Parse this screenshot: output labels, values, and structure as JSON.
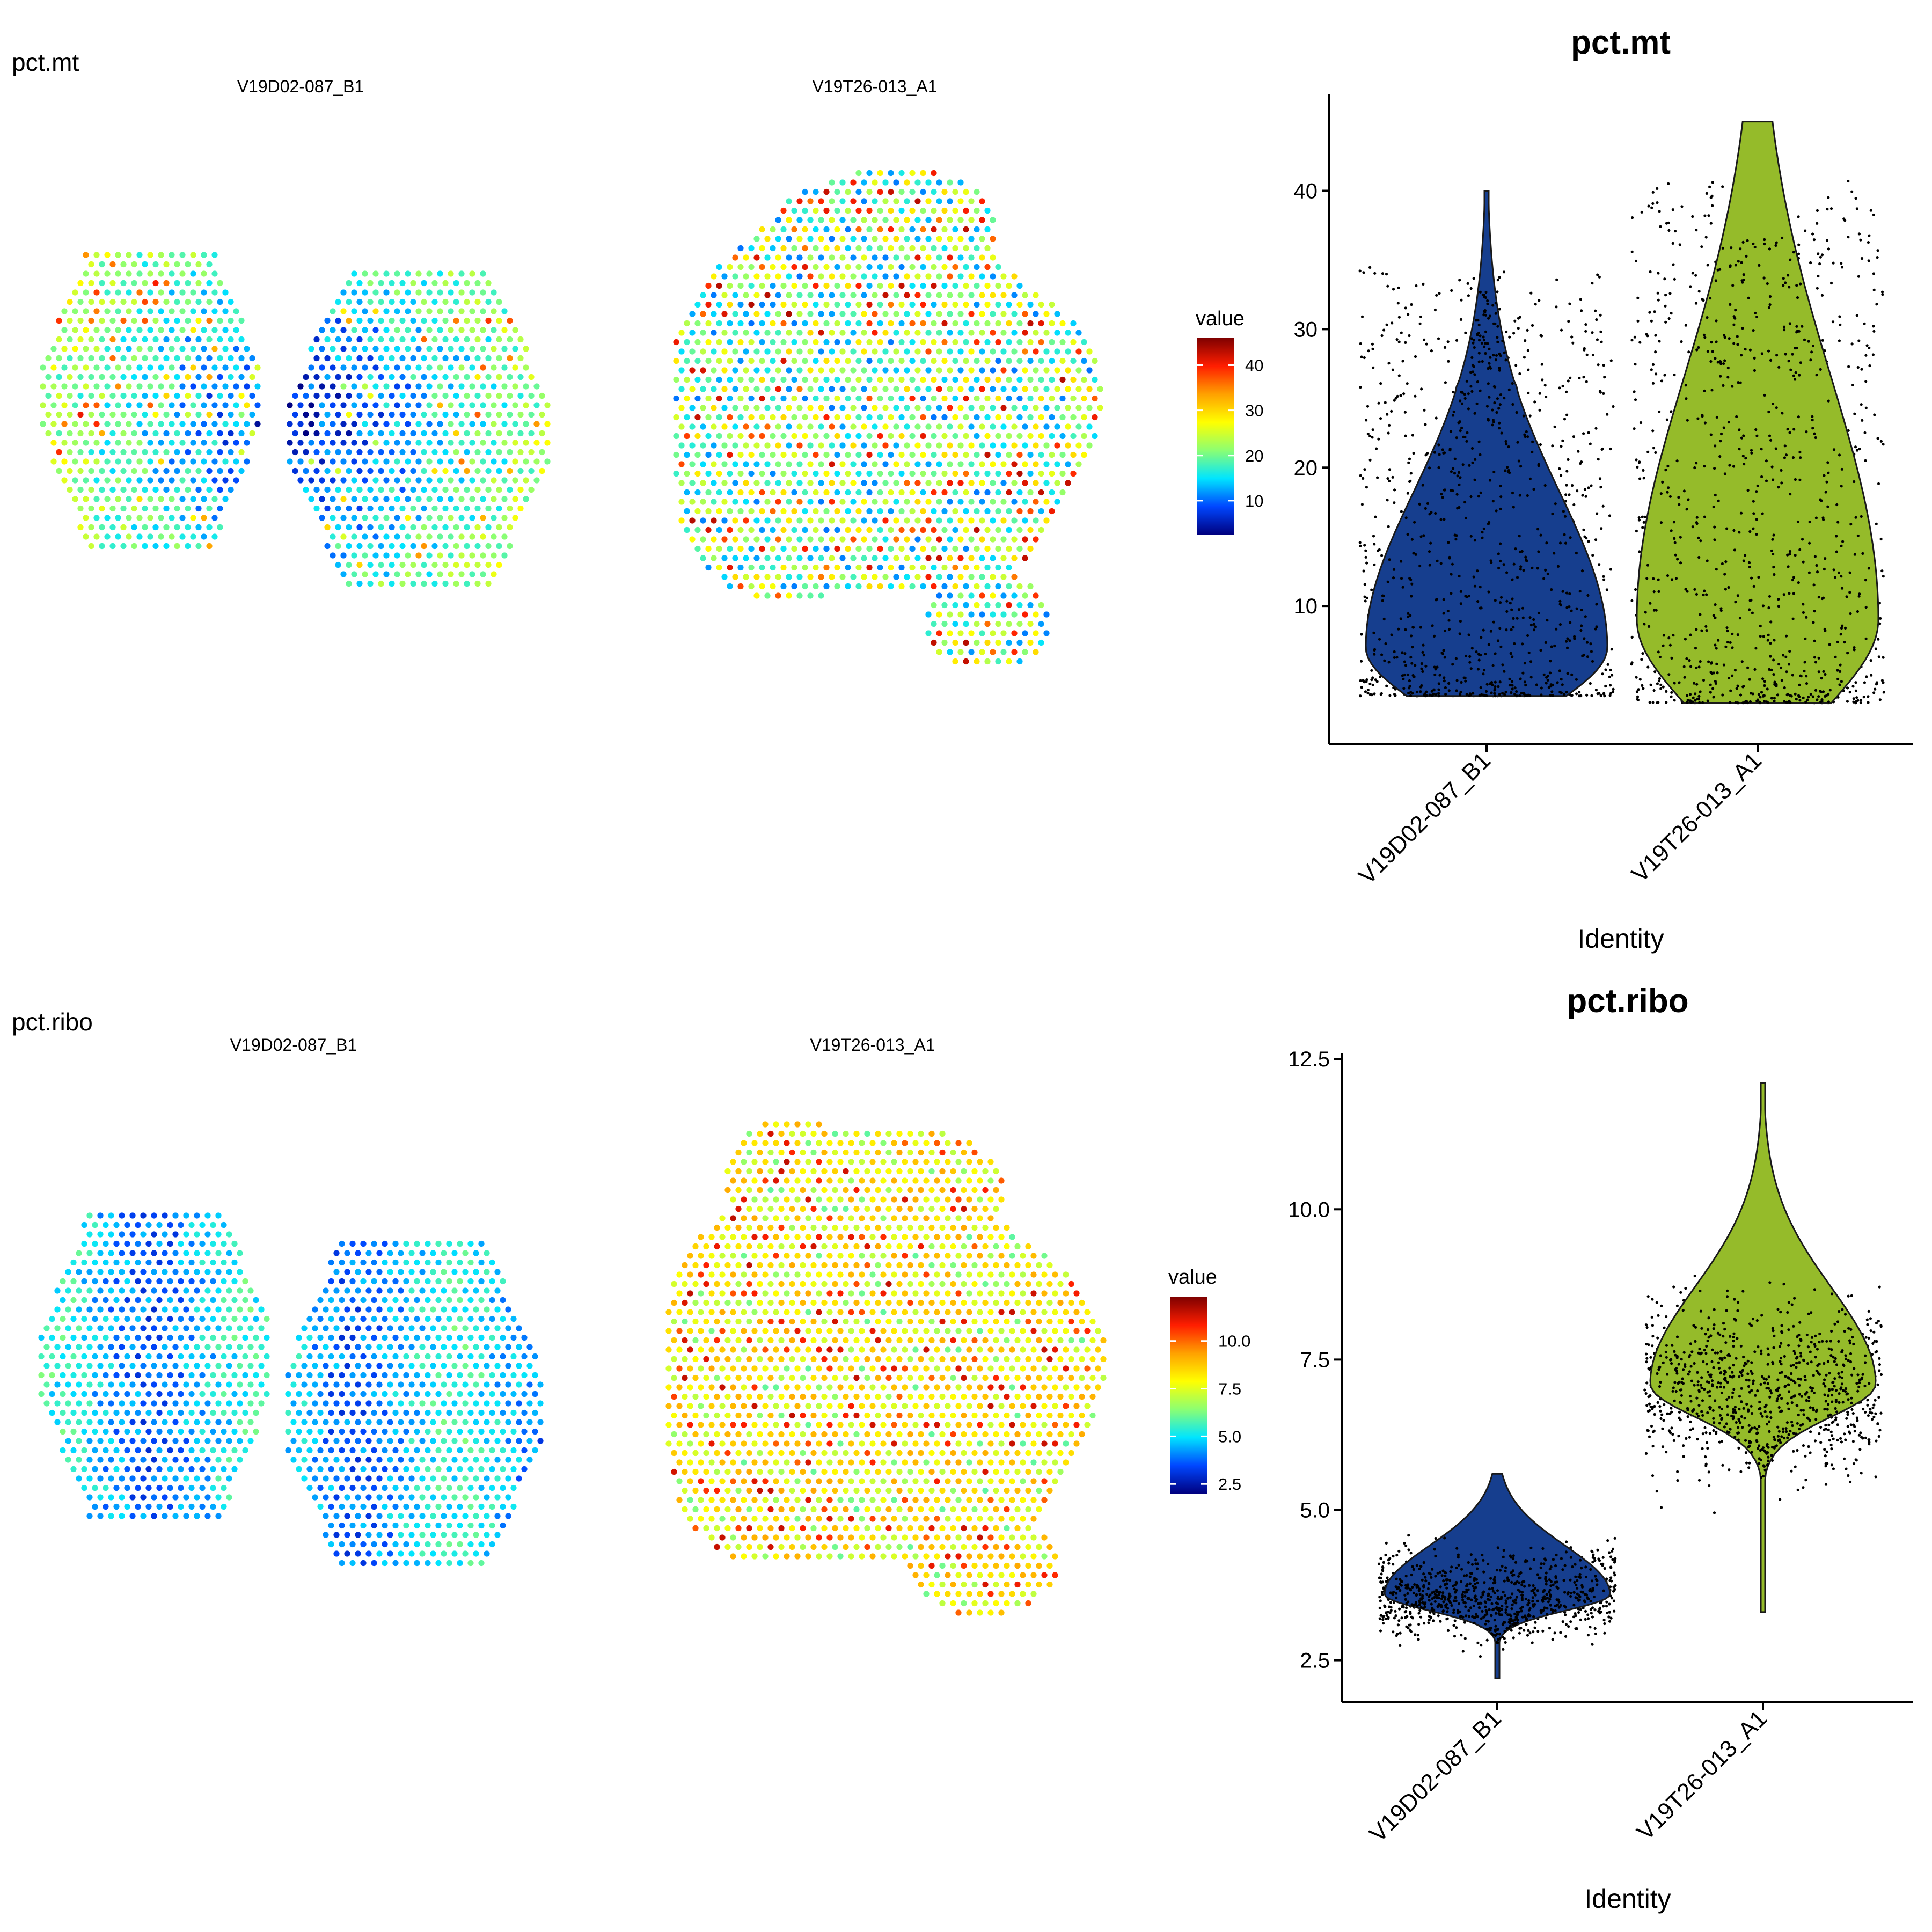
{
  "colors": {
    "jet": [
      "#00007f",
      "#0047ff",
      "#00e5ff",
      "#8cff72",
      "#ffff00",
      "#ffa100",
      "#ff1e00",
      "#7f0000"
    ],
    "group1": "#163e8e",
    "group2": "#95bb2a",
    "jitter_point": "#000000",
    "axis": "#000000"
  },
  "rows": [
    {
      "row_label": "pct.mt",
      "spatial": {
        "panels": [
          {
            "title": "V19D02-087_B1",
            "shape": "two-lobes",
            "bias": "low"
          },
          {
            "title": "V19T26-013_A1",
            "shape": "blob",
            "bias": "mid"
          }
        ],
        "legend": {
          "title": "value",
          "min": 2.5,
          "max": 46,
          "ticks": [
            10,
            20,
            30,
            40
          ],
          "tick_labels": [
            "10",
            "20",
            "30",
            "40"
          ]
        }
      },
      "violin": {
        "title": "pct.mt",
        "x_axis_label": "Identity",
        "y_ticks": [
          10,
          20,
          30,
          40
        ],
        "y_tick_labels": [
          "10",
          "20",
          "30",
          "40"
        ],
        "ylim": [
          0,
          47
        ],
        "groups": [
          {
            "name": "V19D02-087_B1",
            "min": 3.5,
            "max": 40,
            "peak": 7,
            "spread": 7
          },
          {
            "name": "V19T26-013_A1",
            "min": 3,
            "max": 45,
            "peak": 9,
            "spread": 11
          }
        ]
      }
    },
    {
      "row_label": "pct.ribo",
      "spatial": {
        "panels": [
          {
            "title": "V19D02-087_B1",
            "shape": "two-lobes",
            "bias": "vlow"
          },
          {
            "title": "V19T26-013_A1",
            "shape": "blob",
            "bias": "high"
          }
        ],
        "legend": {
          "title": "value",
          "min": 2.0,
          "max": 12.3,
          "ticks": [
            2.5,
            5.0,
            7.5,
            10.0
          ],
          "tick_labels": [
            "2.5",
            "5.0",
            "7.5",
            "10.0"
          ]
        }
      },
      "violin": {
        "title": "pct.ribo",
        "x_axis_label": "Identity",
        "y_ticks": [
          2.5,
          5.0,
          7.5,
          10.0,
          12.5
        ],
        "y_tick_labels": [
          "2.5",
          "5.0",
          "7.5",
          "10.0",
          "12.5"
        ],
        "ylim": [
          1.8,
          12.6
        ],
        "groups": [
          {
            "name": "V19D02-087_B1",
            "min": 2.2,
            "max": 5.6,
            "peak": 3.6,
            "spread": 0.5
          },
          {
            "name": "V19T26-013_A1",
            "min": 3.3,
            "max": 12.1,
            "peak": 7.1,
            "spread": 1.0
          }
        ]
      }
    }
  ],
  "chart_data": [
    {
      "type": "violin",
      "title": "pct.mt",
      "xlabel": "Identity",
      "ylabel": "",
      "categories": [
        "V19D02-087_B1",
        "V19T26-013_A1"
      ],
      "series": [
        {
          "name": "V19D02-087_B1",
          "min": 3.5,
          "max": 40,
          "mode": 7
        },
        {
          "name": "V19T26-013_A1",
          "min": 3,
          "max": 45,
          "mode": 9
        }
      ],
      "y_ticks": [
        10,
        20,
        30,
        40
      ],
      "grid": false
    },
    {
      "type": "violin",
      "title": "pct.ribo",
      "xlabel": "Identity",
      "ylabel": "",
      "categories": [
        "V19D02-087_B1",
        "V19T26-013_A1"
      ],
      "series": [
        {
          "name": "V19D02-087_B1",
          "min": 2.2,
          "max": 5.6,
          "mode": 3.6
        },
        {
          "name": "V19T26-013_A1",
          "min": 3.3,
          "max": 12.1,
          "mode": 7.1
        }
      ],
      "y_ticks": [
        2.5,
        5.0,
        7.5,
        10.0,
        12.5
      ],
      "grid": false
    },
    {
      "type": "scatter",
      "title": "pct.mt",
      "panels": [
        "V19D02-087_B1",
        "V19T26-013_A1"
      ],
      "legend": {
        "title": "value",
        "ticks": [
          10,
          20,
          30,
          40
        ],
        "range": [
          2.5,
          46
        ]
      }
    },
    {
      "type": "scatter",
      "title": "pct.ribo",
      "panels": [
        "V19D02-087_B1",
        "V19T26-013_A1"
      ],
      "legend": {
        "title": "value",
        "ticks": [
          2.5,
          5.0,
          7.5,
          10.0
        ],
        "range": [
          2.0,
          12.3
        ]
      }
    }
  ]
}
